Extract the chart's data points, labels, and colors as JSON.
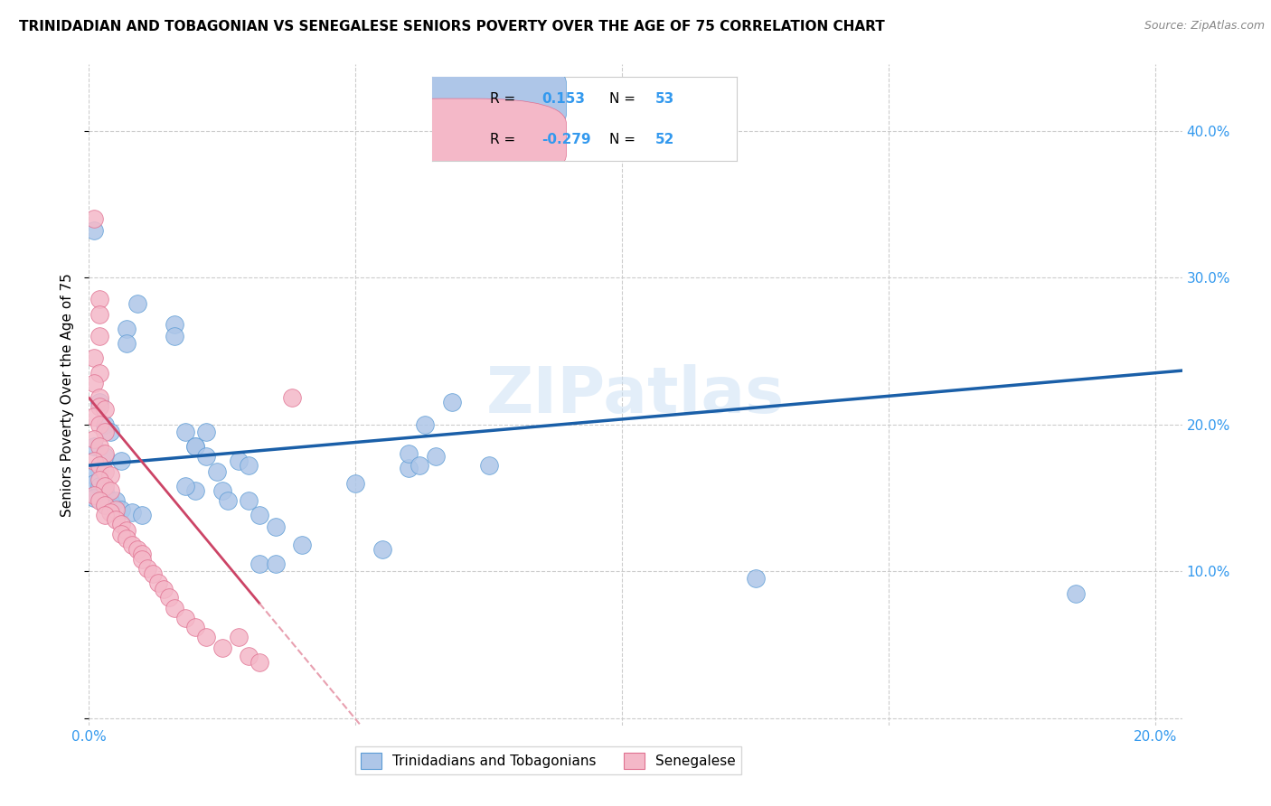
{
  "title": "TRINIDADIAN AND TOBAGONIAN VS SENEGALESE SENIORS POVERTY OVER THE AGE OF 75 CORRELATION CHART",
  "source": "Source: ZipAtlas.com",
  "ylabel": "Seniors Poverty Over the Age of 75",
  "xlim": [
    0.0,
    0.205
  ],
  "ylim": [
    -0.005,
    0.445
  ],
  "xticks": [
    0.0,
    0.05,
    0.1,
    0.15,
    0.2
  ],
  "yticks": [
    0.0,
    0.1,
    0.2,
    0.3,
    0.4
  ],
  "r_blue": 0.153,
  "n_blue": 53,
  "r_pink": -0.279,
  "n_pink": 52,
  "blue_scatter_color": "#aec6e8",
  "blue_edge_color": "#5b9bd5",
  "pink_scatter_color": "#f4b8c8",
  "pink_edge_color": "#e07090",
  "line_blue_color": "#1a5fa8",
  "line_pink_solid_color": "#cc4466",
  "line_pink_dash_color": "#e8a0b0",
  "legend_bottom_labels": [
    "Trinidadians and Tobagonians",
    "Senegalese"
  ],
  "watermark": "ZIPatlas",
  "blue_points_x": [
    0.001,
    0.009,
    0.007,
    0.007,
    0.016,
    0.016,
    0.002,
    0.003,
    0.004,
    0.001,
    0.003,
    0.006,
    0.002,
    0.001,
    0.001,
    0.002,
    0.003,
    0.001,
    0.004,
    0.005,
    0.003,
    0.006,
    0.008,
    0.01,
    0.018,
    0.02,
    0.022,
    0.02,
    0.022,
    0.028,
    0.03,
    0.024,
    0.025,
    0.026,
    0.02,
    0.018,
    0.03,
    0.032,
    0.035,
    0.032,
    0.035,
    0.04,
    0.05,
    0.055,
    0.06,
    0.06,
    0.062,
    0.063,
    0.065,
    0.068,
    0.075,
    0.185,
    0.125
  ],
  "blue_points_y": [
    0.332,
    0.282,
    0.265,
    0.255,
    0.268,
    0.26,
    0.215,
    0.2,
    0.195,
    0.185,
    0.178,
    0.175,
    0.168,
    0.165,
    0.16,
    0.158,
    0.155,
    0.15,
    0.148,
    0.148,
    0.145,
    0.142,
    0.14,
    0.138,
    0.195,
    0.185,
    0.195,
    0.185,
    0.178,
    0.175,
    0.172,
    0.168,
    0.155,
    0.148,
    0.155,
    0.158,
    0.148,
    0.138,
    0.13,
    0.105,
    0.105,
    0.118,
    0.16,
    0.115,
    0.17,
    0.18,
    0.172,
    0.2,
    0.178,
    0.215,
    0.172,
    0.085,
    0.095
  ],
  "pink_points_x": [
    0.001,
    0.002,
    0.002,
    0.002,
    0.001,
    0.002,
    0.001,
    0.002,
    0.002,
    0.003,
    0.001,
    0.002,
    0.003,
    0.001,
    0.002,
    0.003,
    0.001,
    0.002,
    0.003,
    0.004,
    0.002,
    0.003,
    0.004,
    0.001,
    0.002,
    0.003,
    0.005,
    0.004,
    0.003,
    0.005,
    0.006,
    0.007,
    0.006,
    0.007,
    0.008,
    0.009,
    0.01,
    0.01,
    0.011,
    0.012,
    0.013,
    0.014,
    0.015,
    0.016,
    0.018,
    0.02,
    0.022,
    0.028,
    0.025,
    0.03,
    0.032,
    0.038
  ],
  "pink_points_y": [
    0.34,
    0.285,
    0.275,
    0.26,
    0.245,
    0.235,
    0.228,
    0.218,
    0.212,
    0.21,
    0.205,
    0.2,
    0.195,
    0.19,
    0.185,
    0.18,
    0.175,
    0.172,
    0.168,
    0.165,
    0.162,
    0.158,
    0.155,
    0.152,
    0.148,
    0.145,
    0.142,
    0.14,
    0.138,
    0.135,
    0.132,
    0.128,
    0.125,
    0.122,
    0.118,
    0.115,
    0.112,
    0.108,
    0.102,
    0.098,
    0.092,
    0.088,
    0.082,
    0.075,
    0.068,
    0.062,
    0.055,
    0.055,
    0.048,
    0.042,
    0.038,
    0.218
  ],
  "pink_line_solid_x_end": 0.032,
  "pink_line_dash_x_end": 0.07
}
